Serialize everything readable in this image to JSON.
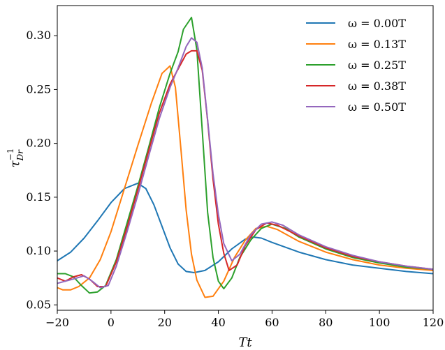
{
  "chart_data": {
    "type": "line",
    "title": "",
    "xlabel": "Tt",
    "ylabel": "τ_Dr^{-1}",
    "ylabel_parts": {
      "base": "τ",
      "sup": "−1",
      "sub": "Dr"
    },
    "xlim": [
      -20,
      120
    ],
    "ylim": [
      0.045,
      0.328
    ],
    "x_ticks": [
      -20,
      0,
      20,
      40,
      60,
      80,
      100,
      120
    ],
    "x_tick_labels": [
      "−20",
      "0",
      "20",
      "40",
      "60",
      "80",
      "100",
      "120"
    ],
    "y_ticks": [
      0.05,
      0.1,
      0.15,
      0.2,
      0.25,
      0.3
    ],
    "y_tick_labels": [
      "0.05",
      "0.10",
      "0.15",
      "0.20",
      "0.25",
      "0.30"
    ],
    "grid": false,
    "legend_position": "top-right",
    "series": [
      {
        "name": "ω = 0.00T",
        "color": "#1f77b4",
        "points": [
          [
            -20,
            0.091
          ],
          [
            -15,
            0.099
          ],
          [
            -10,
            0.112
          ],
          [
            -5,
            0.128
          ],
          [
            0,
            0.145
          ],
          [
            5,
            0.158
          ],
          [
            10,
            0.163
          ],
          [
            13,
            0.158
          ],
          [
            16,
            0.143
          ],
          [
            19,
            0.123
          ],
          [
            22,
            0.103
          ],
          [
            25,
            0.088
          ],
          [
            28,
            0.081
          ],
          [
            31,
            0.08
          ],
          [
            35,
            0.082
          ],
          [
            40,
            0.09
          ],
          [
            45,
            0.102
          ],
          [
            50,
            0.111
          ],
          [
            53,
            0.113
          ],
          [
            56,
            0.112
          ],
          [
            60,
            0.108
          ],
          [
            70,
            0.099
          ],
          [
            80,
            0.092
          ],
          [
            90,
            0.087
          ],
          [
            100,
            0.084
          ],
          [
            110,
            0.081
          ],
          [
            120,
            0.079
          ]
        ]
      },
      {
        "name": "ω = 0.13T",
        "color": "#ff7f0e",
        "points": [
          [
            -20,
            0.066
          ],
          [
            -18,
            0.064
          ],
          [
            -15,
            0.064
          ],
          [
            -12,
            0.067
          ],
          [
            -8,
            0.075
          ],
          [
            -4,
            0.092
          ],
          [
            0,
            0.118
          ],
          [
            5,
            0.158
          ],
          [
            10,
            0.198
          ],
          [
            15,
            0.237
          ],
          [
            19,
            0.265
          ],
          [
            22,
            0.272
          ],
          [
            24,
            0.252
          ],
          [
            26,
            0.196
          ],
          [
            28,
            0.138
          ],
          [
            30,
            0.097
          ],
          [
            32,
            0.073
          ],
          [
            35,
            0.057
          ],
          [
            38,
            0.058
          ],
          [
            42,
            0.072
          ],
          [
            46,
            0.094
          ],
          [
            50,
            0.11
          ],
          [
            54,
            0.121
          ],
          [
            58,
            0.123
          ],
          [
            62,
            0.12
          ],
          [
            70,
            0.109
          ],
          [
            80,
            0.099
          ],
          [
            90,
            0.092
          ],
          [
            100,
            0.087
          ],
          [
            110,
            0.084
          ],
          [
            120,
            0.082
          ]
        ]
      },
      {
        "name": "ω = 0.25T",
        "color": "#2ca02c",
        "points": [
          [
            -20,
            0.079
          ],
          [
            -17,
            0.079
          ],
          [
            -14,
            0.076
          ],
          [
            -11,
            0.068
          ],
          [
            -8,
            0.061
          ],
          [
            -5,
            0.062
          ],
          [
            -2,
            0.068
          ],
          [
            2,
            0.092
          ],
          [
            6,
            0.126
          ],
          [
            10,
            0.16
          ],
          [
            14,
            0.196
          ],
          [
            18,
            0.233
          ],
          [
            22,
            0.265
          ],
          [
            25,
            0.285
          ],
          [
            27,
            0.306
          ],
          [
            30,
            0.317
          ],
          [
            32,
            0.287
          ],
          [
            34,
            0.212
          ],
          [
            36,
            0.136
          ],
          [
            38,
            0.094
          ],
          [
            40,
            0.072
          ],
          [
            42,
            0.065
          ],
          [
            45,
            0.075
          ],
          [
            48,
            0.094
          ],
          [
            52,
            0.11
          ],
          [
            56,
            0.121
          ],
          [
            60,
            0.125
          ],
          [
            65,
            0.121
          ],
          [
            70,
            0.113
          ],
          [
            80,
            0.102
          ],
          [
            90,
            0.094
          ],
          [
            100,
            0.089
          ],
          [
            110,
            0.085
          ],
          [
            120,
            0.083
          ]
        ]
      },
      {
        "name": "ω = 0.38T",
        "color": "#d62728",
        "points": [
          [
            -20,
            0.075
          ],
          [
            -17,
            0.072
          ],
          [
            -14,
            0.076
          ],
          [
            -11,
            0.078
          ],
          [
            -8,
            0.074
          ],
          [
            -5,
            0.067
          ],
          [
            -2,
            0.067
          ],
          [
            2,
            0.09
          ],
          [
            6,
            0.122
          ],
          [
            10,
            0.157
          ],
          [
            14,
            0.193
          ],
          [
            18,
            0.228
          ],
          [
            22,
            0.255
          ],
          [
            25,
            0.269
          ],
          [
            28,
            0.283
          ],
          [
            30,
            0.286
          ],
          [
            32,
            0.286
          ],
          [
            34,
            0.268
          ],
          [
            36,
            0.221
          ],
          [
            38,
            0.167
          ],
          [
            40,
            0.125
          ],
          [
            42,
            0.098
          ],
          [
            44,
            0.082
          ],
          [
            47,
            0.087
          ],
          [
            50,
            0.105
          ],
          [
            54,
            0.12
          ],
          [
            58,
            0.126
          ],
          [
            62,
            0.124
          ],
          [
            70,
            0.114
          ],
          [
            80,
            0.103
          ],
          [
            90,
            0.095
          ],
          [
            100,
            0.09
          ],
          [
            110,
            0.086
          ],
          [
            120,
            0.083
          ]
        ]
      },
      {
        "name": "ω = 0.50T",
        "color": "#9467bd",
        "points": [
          [
            -20,
            0.07
          ],
          [
            -17,
            0.072
          ],
          [
            -14,
            0.074
          ],
          [
            -10,
            0.077
          ],
          [
            -7,
            0.072
          ],
          [
            -4,
            0.066
          ],
          [
            -1,
            0.068
          ],
          [
            2,
            0.086
          ],
          [
            6,
            0.118
          ],
          [
            10,
            0.152
          ],
          [
            14,
            0.188
          ],
          [
            18,
            0.223
          ],
          [
            22,
            0.252
          ],
          [
            25,
            0.27
          ],
          [
            28,
            0.29
          ],
          [
            30,
            0.298
          ],
          [
            32,
            0.294
          ],
          [
            34,
            0.27
          ],
          [
            36,
            0.222
          ],
          [
            38,
            0.172
          ],
          [
            40,
            0.134
          ],
          [
            42,
            0.107
          ],
          [
            45,
            0.091
          ],
          [
            48,
            0.097
          ],
          [
            52,
            0.115
          ],
          [
            56,
            0.125
          ],
          [
            60,
            0.127
          ],
          [
            64,
            0.124
          ],
          [
            70,
            0.115
          ],
          [
            80,
            0.104
          ],
          [
            90,
            0.096
          ],
          [
            100,
            0.09
          ],
          [
            110,
            0.086
          ],
          [
            120,
            0.083
          ]
        ]
      }
    ]
  }
}
